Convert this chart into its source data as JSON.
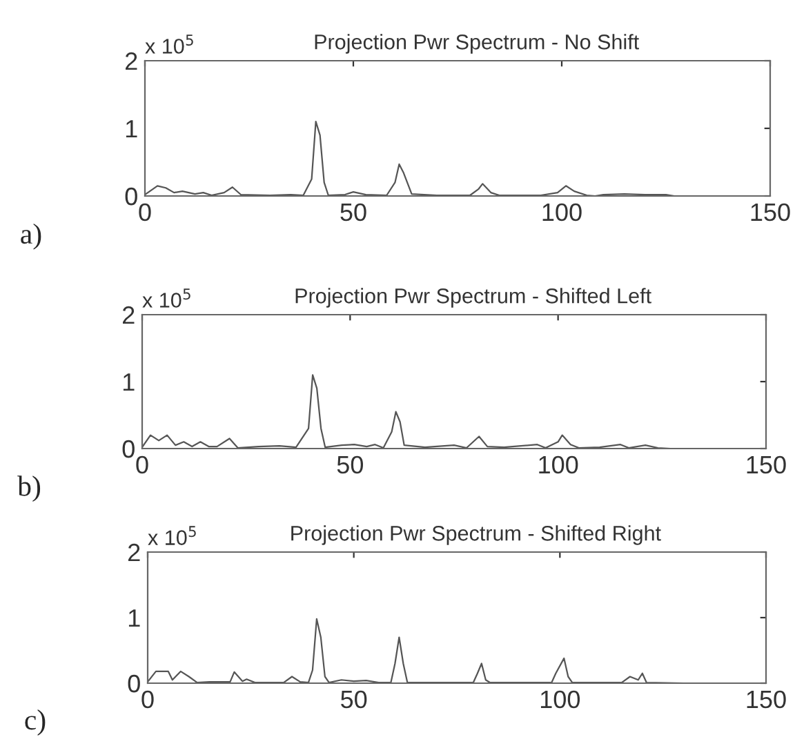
{
  "chart_data": [
    {
      "type": "line",
      "title": "Projection Pwr Spectrum - No Shift",
      "annotations": [
        "x 10$^{5}$",
        "a)"
      ],
      "xlim": [
        0,
        150
      ],
      "xticks": [
        0,
        50,
        100,
        150
      ],
      "ylim": [
        0,
        2
      ],
      "yticks": [
        0,
        1,
        2
      ],
      "grid": false,
      "legend": false,
      "series": [
        {
          "color": "#555555",
          "x": [
            0,
            3,
            5,
            7,
            9,
            12,
            14,
            16,
            19,
            21,
            23,
            30,
            35,
            38,
            40,
            41,
            42,
            43,
            44,
            48,
            50,
            53,
            58,
            60,
            61,
            62,
            64,
            70,
            78,
            80,
            81,
            83,
            85,
            95,
            99,
            101,
            103,
            106,
            108,
            110,
            115,
            120,
            125,
            127
          ],
          "values": [
            0.02,
            0.15,
            0.12,
            0.05,
            0.07,
            0.03,
            0.05,
            0.01,
            0.05,
            0.13,
            0.02,
            0.01,
            0.02,
            0.01,
            0.25,
            1.1,
            0.9,
            0.2,
            0.01,
            0.02,
            0.06,
            0.02,
            0.01,
            0.2,
            0.47,
            0.35,
            0.03,
            0.01,
            0.01,
            0.1,
            0.18,
            0.05,
            0.01,
            0.01,
            0.05,
            0.15,
            0.07,
            0.01,
            0.0,
            0.02,
            0.03,
            0.02,
            0.02,
            0.0
          ]
        }
      ]
    },
    {
      "type": "line",
      "title": "Projection Pwr Spectrum - Shifted Left",
      "annotations": [
        "x 10$^{5}$",
        "b)"
      ],
      "xlim": [
        0,
        150
      ],
      "xticks": [
        0,
        50,
        100,
        150
      ],
      "ylim": [
        0,
        2
      ],
      "yticks": [
        0,
        1,
        2
      ],
      "grid": false,
      "legend": false,
      "series": [
        {
          "color": "#555555",
          "x": [
            0,
            2,
            4,
            6,
            8,
            10,
            12,
            14,
            16,
            18,
            21,
            23,
            28,
            33,
            37,
            40,
            41,
            42,
            43,
            44,
            48,
            51,
            54,
            56,
            58,
            60,
            61,
            62,
            63,
            68,
            75,
            78,
            81,
            83,
            87,
            95,
            97,
            100,
            101,
            103,
            105,
            110,
            115,
            117,
            121,
            124,
            127
          ],
          "values": [
            0.02,
            0.2,
            0.12,
            0.2,
            0.05,
            0.1,
            0.03,
            0.1,
            0.03,
            0.03,
            0.15,
            0.01,
            0.03,
            0.04,
            0.02,
            0.3,
            1.1,
            0.9,
            0.3,
            0.02,
            0.05,
            0.06,
            0.03,
            0.06,
            0.01,
            0.25,
            0.55,
            0.4,
            0.05,
            0.02,
            0.05,
            0.01,
            0.18,
            0.03,
            0.02,
            0.06,
            0.01,
            0.1,
            0.2,
            0.06,
            0.01,
            0.02,
            0.06,
            0.01,
            0.05,
            0.01,
            0.0
          ]
        }
      ]
    },
    {
      "type": "line",
      "title": "Projection Pwr Spectrum - Shifted Right",
      "annotations": [
        "x 10$^{5}$",
        "c)"
      ],
      "xlim": [
        0,
        150
      ],
      "xticks": [
        0,
        50,
        100,
        150
      ],
      "ylim": [
        0,
        2
      ],
      "yticks": [
        0,
        1,
        2
      ],
      "grid": false,
      "legend": false,
      "series": [
        {
          "color": "#555555",
          "x": [
            0,
            2,
            5,
            6,
            8,
            10,
            12,
            15,
            20,
            21,
            23,
            24,
            26,
            33,
            35,
            37,
            39,
            40,
            41,
            42,
            43,
            44,
            47,
            50,
            53,
            56,
            59,
            60,
            61,
            62,
            63,
            70,
            79,
            80,
            81,
            82,
            83,
            98,
            99,
            101,
            102,
            103,
            115,
            117,
            119,
            120,
            121,
            130
          ],
          "values": [
            0.02,
            0.18,
            0.18,
            0.05,
            0.18,
            0.1,
            0.01,
            0.02,
            0.02,
            0.17,
            0.03,
            0.06,
            0.01,
            0.01,
            0.1,
            0.02,
            0.01,
            0.2,
            0.98,
            0.7,
            0.1,
            0.01,
            0.05,
            0.03,
            0.04,
            0.01,
            0.01,
            0.3,
            0.7,
            0.3,
            0.01,
            0.01,
            0.01,
            0.15,
            0.3,
            0.05,
            0.01,
            0.01,
            0.15,
            0.38,
            0.1,
            0.01,
            0.01,
            0.1,
            0.05,
            0.15,
            0.01,
            0.0
          ]
        }
      ]
    }
  ]
}
